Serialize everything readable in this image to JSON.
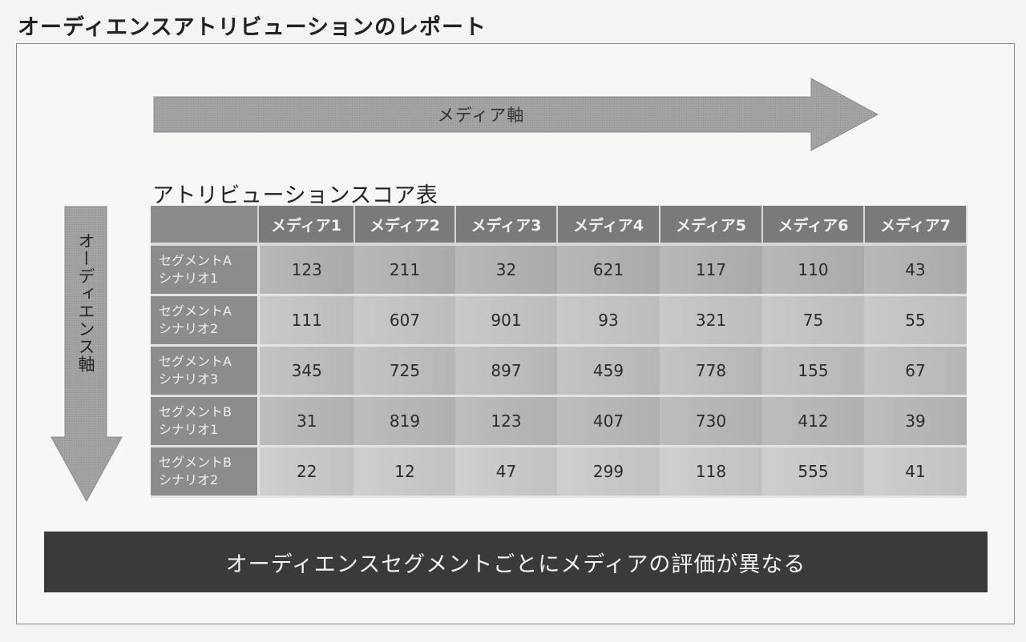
{
  "page_title": "オーディエンスアトリビューションのレポート",
  "media_axis_label": "メディア軸",
  "audience_axis_label": "オーディエンス軸",
  "table_title": "アトリビューションスコア表",
  "table": {
    "columns": [
      "メディア1",
      "メディア2",
      "メディア3",
      "メディア4",
      "メディア5",
      "メディア6",
      "メディア7"
    ],
    "rows": [
      {
        "segment": "セグメントA",
        "scenario": "シナリオ1",
        "values": [
          "123",
          "211",
          "32",
          "621",
          "117",
          "110",
          "43"
        ]
      },
      {
        "segment": "セグメントA",
        "scenario": "シナリオ2",
        "values": [
          "111",
          "607",
          "901",
          "93",
          "321",
          "75",
          "55"
        ]
      },
      {
        "segment": "セグメントA",
        "scenario": "シナリオ3",
        "values": [
          "345",
          "725",
          "897",
          "459",
          "778",
          "155",
          "67"
        ]
      },
      {
        "segment": "セグメントB",
        "scenario": "シナリオ1",
        "values": [
          "31",
          "819",
          "123",
          "407",
          "730",
          "412",
          "39"
        ]
      },
      {
        "segment": "セグメントB",
        "scenario": "シナリオ2",
        "values": [
          "22",
          "12",
          "47",
          "299",
          "118",
          "555",
          "41"
        ]
      }
    ]
  },
  "conclusion": "オーディエンスセグメントごとにメディアの評価が異なる",
  "colors": {
    "arrow": "#999999",
    "header": "#7a7a7a",
    "banner": "#3a3a3a"
  }
}
